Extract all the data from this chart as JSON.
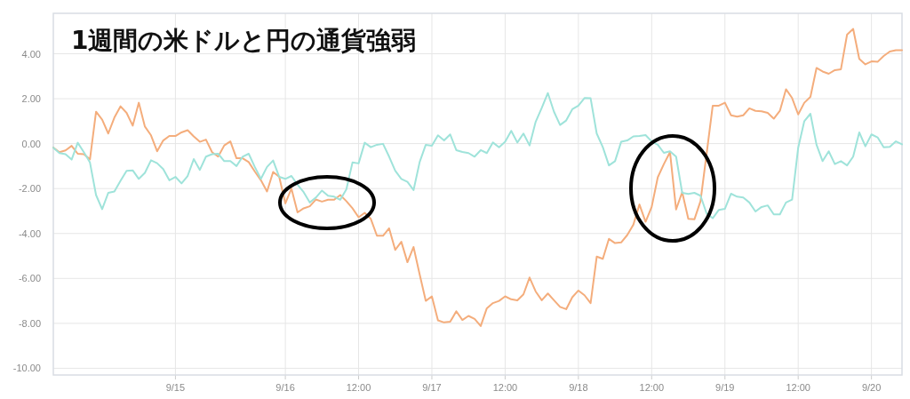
{
  "chart_data": {
    "type": "line",
    "title": "1週間の米ドルと円の通貨強弱",
    "categories": [
      null,
      null,
      null,
      null,
      null,
      null,
      null,
      null,
      null,
      null,
      null,
      null,
      null,
      null,
      null,
      null,
      null,
      null,
      null,
      null,
      "9/15",
      null,
      null,
      null,
      null,
      null,
      null,
      null,
      null,
      null,
      null,
      null,
      null,
      null,
      null,
      null,
      null,
      null,
      "9/16",
      null,
      null,
      null,
      null,
      null,
      null,
      null,
      null,
      null,
      null,
      null,
      "12:00",
      null,
      null,
      null,
      null,
      null,
      null,
      null,
      null,
      null,
      null,
      null,
      "9/17",
      null,
      null,
      null,
      null,
      null,
      null,
      null,
      null,
      null,
      null,
      null,
      "12:00",
      null,
      null,
      null,
      null,
      null,
      null,
      null,
      null,
      null,
      null,
      null,
      "9/18",
      null,
      null,
      null,
      null,
      null,
      null,
      null,
      null,
      null,
      null,
      null,
      "12:00",
      null,
      null,
      null,
      null,
      null,
      null,
      null,
      null,
      null,
      null,
      null,
      "9/19",
      null,
      null,
      null,
      null,
      null,
      null,
      null,
      null,
      null,
      null,
      null,
      "12:00",
      null,
      null,
      null,
      null,
      null,
      null,
      null,
      null,
      null,
      null,
      null,
      "9/20",
      null,
      null,
      null,
      null,
      null
    ],
    "series": [
      {
        "color": "#f4ad7c",
        "values": [
          -0.18,
          -0.38,
          -0.3,
          -0.1,
          -0.45,
          -0.47,
          -0.7,
          1.42,
          1.07,
          0.45,
          1.16,
          1.66,
          1.37,
          0.8,
          1.82,
          0.76,
          0.37,
          -0.34,
          0.14,
          0.34,
          0.34,
          0.5,
          0.6,
          0.32,
          0.08,
          0.18,
          -0.38,
          -0.58,
          -0.08,
          0.1,
          -0.65,
          -0.65,
          -0.82,
          -1.24,
          -1.63,
          -2.13,
          -1.26,
          -1.48,
          -2.66,
          -2.0,
          -3.06,
          -2.88,
          -2.79,
          -2.49,
          -2.58,
          -2.5,
          -2.5,
          -2.29,
          -2.56,
          -2.88,
          -3.28,
          -3.08,
          -3.35,
          -4.1,
          -4.1,
          -3.77,
          -4.73,
          -4.37,
          -5.28,
          -4.6,
          -5.82,
          -7.0,
          -6.8,
          -7.87,
          -7.96,
          -7.93,
          -7.46,
          -7.85,
          -7.67,
          -7.8,
          -8.12,
          -7.33,
          -7.1,
          -7.0,
          -6.8,
          -6.93,
          -6.98,
          -6.71,
          -5.96,
          -6.58,
          -6.97,
          -6.67,
          -6.97,
          -7.27,
          -7.37,
          -6.84,
          -6.54,
          -6.75,
          -7.1,
          -5.03,
          -5.13,
          -4.24,
          -4.43,
          -4.4,
          -4.07,
          -3.61,
          -2.71,
          -3.48,
          -2.82,
          -1.5,
          -0.91,
          -0.38,
          -2.93,
          -2.16,
          -3.35,
          -3.37,
          -2.56,
          -0.45,
          1.69,
          1.69,
          1.82,
          1.26,
          1.2,
          1.26,
          1.57,
          1.46,
          1.44,
          1.37,
          1.11,
          1.46,
          2.42,
          2.03,
          1.3,
          1.82,
          2.08,
          3.37,
          3.21,
          3.11,
          3.27,
          3.31,
          4.85,
          5.11,
          3.77,
          3.53,
          3.66,
          3.64,
          3.9,
          4.1,
          4.16,
          4.16
        ]
      },
      {
        "color": "#9fe3da",
        "values": [
          -0.18,
          -0.42,
          -0.47,
          -0.71,
          0.04,
          -0.38,
          -0.84,
          -2.29,
          -2.92,
          -2.19,
          -2.13,
          -1.66,
          -1.21,
          -1.19,
          -1.57,
          -1.3,
          -0.74,
          -0.87,
          -1.13,
          -1.63,
          -1.48,
          -1.77,
          -1.44,
          -0.69,
          -1.17,
          -0.58,
          -0.47,
          -0.45,
          -0.78,
          -0.78,
          -1.0,
          -0.58,
          -0.45,
          -1.04,
          -1.57,
          -1.04,
          -0.75,
          -1.48,
          -1.57,
          -1.44,
          -1.83,
          -2.16,
          -2.62,
          -2.4,
          -2.09,
          -2.32,
          -2.36,
          -2.5,
          -2.03,
          -0.84,
          -0.88,
          0.04,
          -0.16,
          -0.05,
          -0.01,
          -0.58,
          -1.21,
          -1.57,
          -1.7,
          -2.07,
          -0.82,
          -0.05,
          -0.09,
          0.37,
          0.14,
          0.41,
          -0.29,
          -0.37,
          -0.42,
          -0.58,
          -0.29,
          -0.42,
          0.05,
          -0.16,
          0.08,
          0.57,
          0.05,
          0.45,
          -0.08,
          0.97,
          1.59,
          2.25,
          1.42,
          0.83,
          1.03,
          1.53,
          1.69,
          2.03,
          2.02,
          0.45,
          -0.16,
          -0.97,
          -0.78,
          0.08,
          0.14,
          0.32,
          0.34,
          0.38,
          0.1,
          -0.05,
          -0.41,
          -0.34,
          -0.58,
          -2.19,
          -2.24,
          -2.19,
          -2.32,
          -3.11,
          -3.32,
          -2.95,
          -2.9,
          -2.23,
          -2.36,
          -2.4,
          -2.62,
          -3.02,
          -2.82,
          -2.75,
          -3.15,
          -3.15,
          -2.62,
          -2.49,
          -0.18,
          1.0,
          1.33,
          -0.05,
          -0.78,
          -0.34,
          -0.91,
          -0.78,
          -0.97,
          -0.58,
          0.5,
          -0.12,
          0.41,
          0.28,
          -0.16,
          -0.14,
          0.1,
          -0.03
        ]
      }
    ],
    "ylim": [
      -10.3,
      5.8
    ],
    "yticks": [
      {
        "value": -10,
        "label": "-10.00"
      },
      {
        "value": -8,
        "label": "-8.00"
      },
      {
        "value": -6,
        "label": "-6.00"
      },
      {
        "value": -4,
        "label": "-4.00"
      },
      {
        "value": -2,
        "label": "-2.00"
      },
      {
        "value": 0,
        "label": "0.00"
      },
      {
        "value": 2,
        "label": "2.00"
      },
      {
        "value": 4,
        "label": "4.00"
      }
    ],
    "grid": true,
    "marker": "none",
    "line_style": "solid"
  }
}
